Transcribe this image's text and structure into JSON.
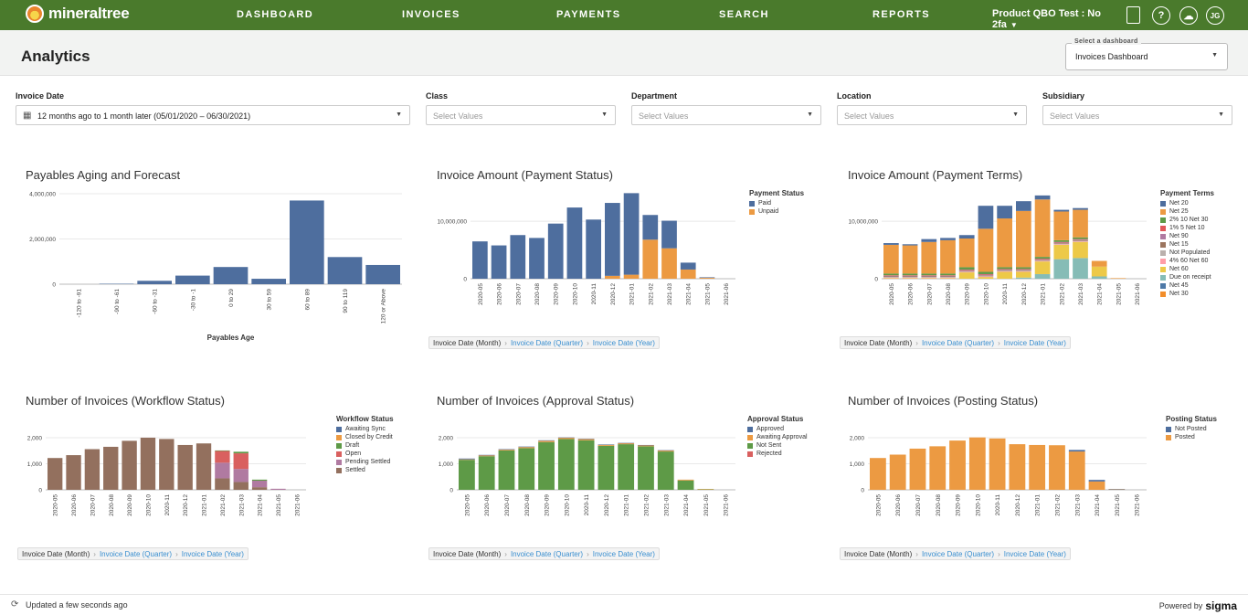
{
  "nav": {
    "brand": "mineraltree",
    "links": [
      "DASHBOARD",
      "INVOICES",
      "PAYMENTS",
      "SEARCH",
      "REPORTS"
    ],
    "tenant": "Product QBO Test : No 2fa",
    "user_initials": "JG",
    "help_glyph": "?"
  },
  "header": {
    "title": "Analytics",
    "dashboard_select_label": "Select a dashboard",
    "dashboard_select_value": "Invoices Dashboard"
  },
  "filters": [
    {
      "label": "Invoice Date",
      "value": "12 months ago to 1 month later (05/01/2020 – 06/30/2021)"
    },
    {
      "label": "Class",
      "value": "Select Values"
    },
    {
      "label": "Department",
      "value": "Select Values"
    },
    {
      "label": "Location",
      "value": "Select Values"
    },
    {
      "label": "Subsidiary",
      "value": "Select Values"
    }
  ],
  "breadcrumb": {
    "current": "Invoice Date (Month)",
    "links": [
      "Invoice Date (Quarter)",
      "Invoice Date (Year)"
    ]
  },
  "footer": {
    "updated": "Updated a few seconds ago",
    "powered": "Powered by",
    "brand": "sigma"
  },
  "colors": {
    "blue": "#4e6e9e",
    "orange": "#ec9a42",
    "green": "#5e9a47",
    "brown": "#93705e",
    "nav": "#4a7a2c"
  },
  "chart_data": [
    {
      "type": "bar",
      "title": "Payables Aging and Forecast",
      "xlabel": "Payables Age",
      "categories": [
        "-120 to -91",
        "-90 to -61",
        "-60 to -31",
        "-30 to -1",
        "0 to 29",
        "30 to 59",
        "60 to 89",
        "90 to 119",
        "120 or Above"
      ],
      "values": [
        0,
        20000,
        150000,
        380000,
        760000,
        240000,
        3700000,
        1200000,
        850000
      ],
      "yticks": [
        "4,000,000",
        "2,000,000",
        "0"
      ],
      "ylim": [
        0,
        4000000
      ],
      "color": "#4e6e9e"
    },
    {
      "type": "bar",
      "title": "Invoice Amount (Payment Status)",
      "categories": [
        "2020-05",
        "2020-06",
        "2020-07",
        "2020-08",
        "2020-09",
        "2020-10",
        "2020-11",
        "2020-12",
        "2021-01",
        "2021-02",
        "2021-03",
        "2021-04",
        "2021-05",
        "2021-06"
      ],
      "yticks": [
        "10,000,000",
        "0"
      ],
      "ylim": [
        0,
        14800000
      ],
      "legend_title": "Payment Status",
      "series": [
        {
          "name": "Paid",
          "color": "#4e6e9e",
          "values": [
            6500000,
            5800000,
            7600000,
            7100000,
            9600000,
            12400000,
            10300000,
            12700000,
            14200000,
            4300000,
            4800000,
            1200000,
            100000,
            0
          ]
        },
        {
          "name": "Unpaid",
          "color": "#ec9a42",
          "values": [
            0,
            0,
            0,
            0,
            0,
            0,
            0,
            500000,
            700000,
            6800000,
            5300000,
            1600000,
            150000,
            0
          ]
        }
      ]
    },
    {
      "type": "bar",
      "title": "Invoice Amount (Payment Terms)",
      "categories": [
        "2020-05",
        "2020-06",
        "2020-07",
        "2020-08",
        "2020-09",
        "2020-10",
        "2020-11",
        "2020-12",
        "2021-01",
        "2021-02",
        "2021-03",
        "2021-04",
        "2021-05",
        "2021-06"
      ],
      "yticks": [
        "10,000,000",
        "0"
      ],
      "ylim": [
        0,
        14800000
      ],
      "legend_title": "Payment Terms",
      "series": [
        {
          "name": "Net 20",
          "color": "#4e6e9e",
          "values": [
            300000,
            200000,
            500000,
            400000,
            600000,
            4000000,
            2200000,
            1700000,
            700000,
            300000,
            300000,
            0,
            0,
            0
          ]
        },
        {
          "name": "Net 25",
          "color": "#ec9a42",
          "values": [
            5000000,
            4900000,
            5500000,
            5800000,
            5000000,
            7500000,
            8500000,
            9800000,
            10000000,
            5000000,
            4800000,
            1000000,
            100000,
            0
          ]
        },
        {
          "name": "2% 10 Net 30",
          "color": "#5e9a47",
          "values": [
            300000,
            300000,
            300000,
            300000,
            400000,
            400000,
            300000,
            300000,
            300000,
            300000,
            300000,
            0,
            0,
            0
          ]
        },
        {
          "name": "1% 5 Net 10",
          "color": "#e15759",
          "values": [
            100000,
            100000,
            100000,
            100000,
            100000,
            100000,
            100000,
            100000,
            100000,
            100000,
            100000,
            0,
            0,
            0
          ]
        },
        {
          "name": "Net 90",
          "color": "#b07aa1",
          "values": [
            100000,
            100000,
            100000,
            100000,
            100000,
            100000,
            100000,
            100000,
            100000,
            100000,
            100000,
            0,
            0,
            0
          ]
        },
        {
          "name": "Net 15",
          "color": "#9c755f",
          "values": [
            100000,
            100000,
            100000,
            100000,
            100000,
            100000,
            100000,
            100000,
            100000,
            100000,
            100000,
            0,
            0,
            0
          ]
        },
        {
          "name": "Not Populated",
          "color": "#bab0ac",
          "values": [
            100000,
            100000,
            100000,
            100000,
            100000,
            100000,
            100000,
            100000,
            100000,
            100000,
            100000,
            0,
            0,
            0
          ]
        },
        {
          "name": "4% 60 Net 60",
          "color": "#ff9da7",
          "values": [
            100000,
            100000,
            100000,
            100000,
            100000,
            100000,
            100000,
            100000,
            100000,
            100000,
            100000,
            0,
            0,
            0
          ]
        },
        {
          "name": "Net 60",
          "color": "#edc948",
          "values": [
            100000,
            100000,
            100000,
            100000,
            1100000,
            300000,
            1200000,
            1000000,
            2200000,
            2500000,
            2800000,
            1700000,
            0,
            0
          ]
        },
        {
          "name": "Due on receipt",
          "color": "#86bcb6",
          "values": [
            0,
            0,
            0,
            0,
            0,
            0,
            0,
            200000,
            800000,
            3400000,
            3600000,
            400000,
            0,
            0
          ]
        },
        {
          "name": "Net 45",
          "color": "#4e79a7",
          "values": [
            0,
            0,
            0,
            0,
            0,
            0,
            0,
            0,
            0,
            0,
            0,
            0,
            0,
            0
          ]
        },
        {
          "name": "Net 30",
          "color": "#f28e2b",
          "values": [
            0,
            0,
            0,
            0,
            0,
            0,
            0,
            0,
            0,
            0,
            0,
            0,
            0,
            0
          ]
        }
      ]
    },
    {
      "type": "bar",
      "title": "Number of Invoices (Workflow Status)",
      "categories": [
        "2020-05",
        "2020-06",
        "2020-07",
        "2020-08",
        "2020-09",
        "2020-10",
        "2020-11",
        "2020-12",
        "2021-01",
        "2021-02",
        "2021-03",
        "2021-04",
        "2021-05",
        "2021-06"
      ],
      "yticks": [
        "2,000",
        "1,000",
        "0"
      ],
      "ylim": [
        0,
        2700
      ],
      "legend_title": "Workflow Status",
      "series": [
        {
          "name": "Awaiting Sync",
          "color": "#4e6e9e",
          "values": [
            0,
            0,
            0,
            0,
            0,
            0,
            0,
            0,
            0,
            0,
            0,
            0,
            0,
            0
          ]
        },
        {
          "name": "Closed by Credit",
          "color": "#ec9a42",
          "values": [
            0,
            0,
            0,
            0,
            0,
            0,
            0,
            0,
            0,
            0,
            0,
            0,
            0,
            0
          ]
        },
        {
          "name": "Draft",
          "color": "#5e9a47",
          "values": [
            0,
            0,
            0,
            0,
            0,
            0,
            0,
            0,
            0,
            20,
            60,
            40,
            0,
            0
          ]
        },
        {
          "name": "Open",
          "color": "#d9605f",
          "values": [
            0,
            0,
            0,
            0,
            0,
            0,
            0,
            0,
            0,
            450,
            600,
            0,
            0,
            0
          ]
        },
        {
          "name": "Pending Settled",
          "color": "#b07aa1",
          "values": [
            0,
            0,
            0,
            0,
            0,
            0,
            0,
            0,
            0,
            600,
            500,
            250,
            40,
            0
          ]
        },
        {
          "name": "Settled",
          "color": "#93705e",
          "values": [
            1220,
            1330,
            1560,
            1650,
            1880,
            2000,
            1950,
            1720,
            1780,
            440,
            300,
            100,
            0,
            0
          ]
        }
      ]
    },
    {
      "type": "bar",
      "title": "Number of Invoices (Approval Status)",
      "categories": [
        "2020-05",
        "2020-06",
        "2020-07",
        "2020-08",
        "2020-09",
        "2020-10",
        "2020-11",
        "2020-12",
        "2021-01",
        "2021-02",
        "2021-03",
        "2021-04",
        "2021-05",
        "2021-06"
      ],
      "yticks": [
        "2,000",
        "1,000",
        "0"
      ],
      "ylim": [
        0,
        2700
      ],
      "legend_title": "Approval Status",
      "series": [
        {
          "name": "Approved",
          "color": "#4e6e9e",
          "values": [
            30,
            20,
            20,
            20,
            20,
            10,
            10,
            10,
            10,
            10,
            10,
            0,
            0,
            0
          ]
        },
        {
          "name": "Awaiting Approval",
          "color": "#ec9a42",
          "values": [
            20,
            30,
            30,
            40,
            50,
            50,
            50,
            40,
            40,
            40,
            40,
            30,
            10,
            0
          ]
        },
        {
          "name": "Not Sent",
          "color": "#5e9a47",
          "values": [
            1150,
            1290,
            1510,
            1600,
            1830,
            1950,
            1900,
            1690,
            1750,
            1670,
            1470,
            360,
            20,
            0
          ]
        },
        {
          "name": "Rejected",
          "color": "#d9605f",
          "values": [
            0,
            0,
            0,
            0,
            0,
            0,
            0,
            0,
            0,
            0,
            0,
            0,
            0,
            0
          ]
        }
      ]
    },
    {
      "type": "bar",
      "title": "Number of Invoices (Posting Status)",
      "categories": [
        "2020-05",
        "2020-06",
        "2020-07",
        "2020-08",
        "2020-09",
        "2020-10",
        "2020-11",
        "2020-12",
        "2021-01",
        "2021-02",
        "2021-03",
        "2021-04",
        "2021-05",
        "2021-06"
      ],
      "yticks": [
        "2,000",
        "1,000",
        "0"
      ],
      "ylim": [
        0,
        2700
      ],
      "legend_title": "Posting Status",
      "series": [
        {
          "name": "Not Posted",
          "color": "#4e6e9e",
          "values": [
            0,
            0,
            0,
            0,
            0,
            0,
            0,
            0,
            0,
            0,
            60,
            60,
            10,
            0
          ]
        },
        {
          "name": "Posted",
          "color": "#ec9a42",
          "values": [
            1220,
            1350,
            1580,
            1670,
            1890,
            2010,
            1970,
            1750,
            1720,
            1710,
            1470,
            320,
            20,
            0
          ]
        }
      ]
    }
  ]
}
